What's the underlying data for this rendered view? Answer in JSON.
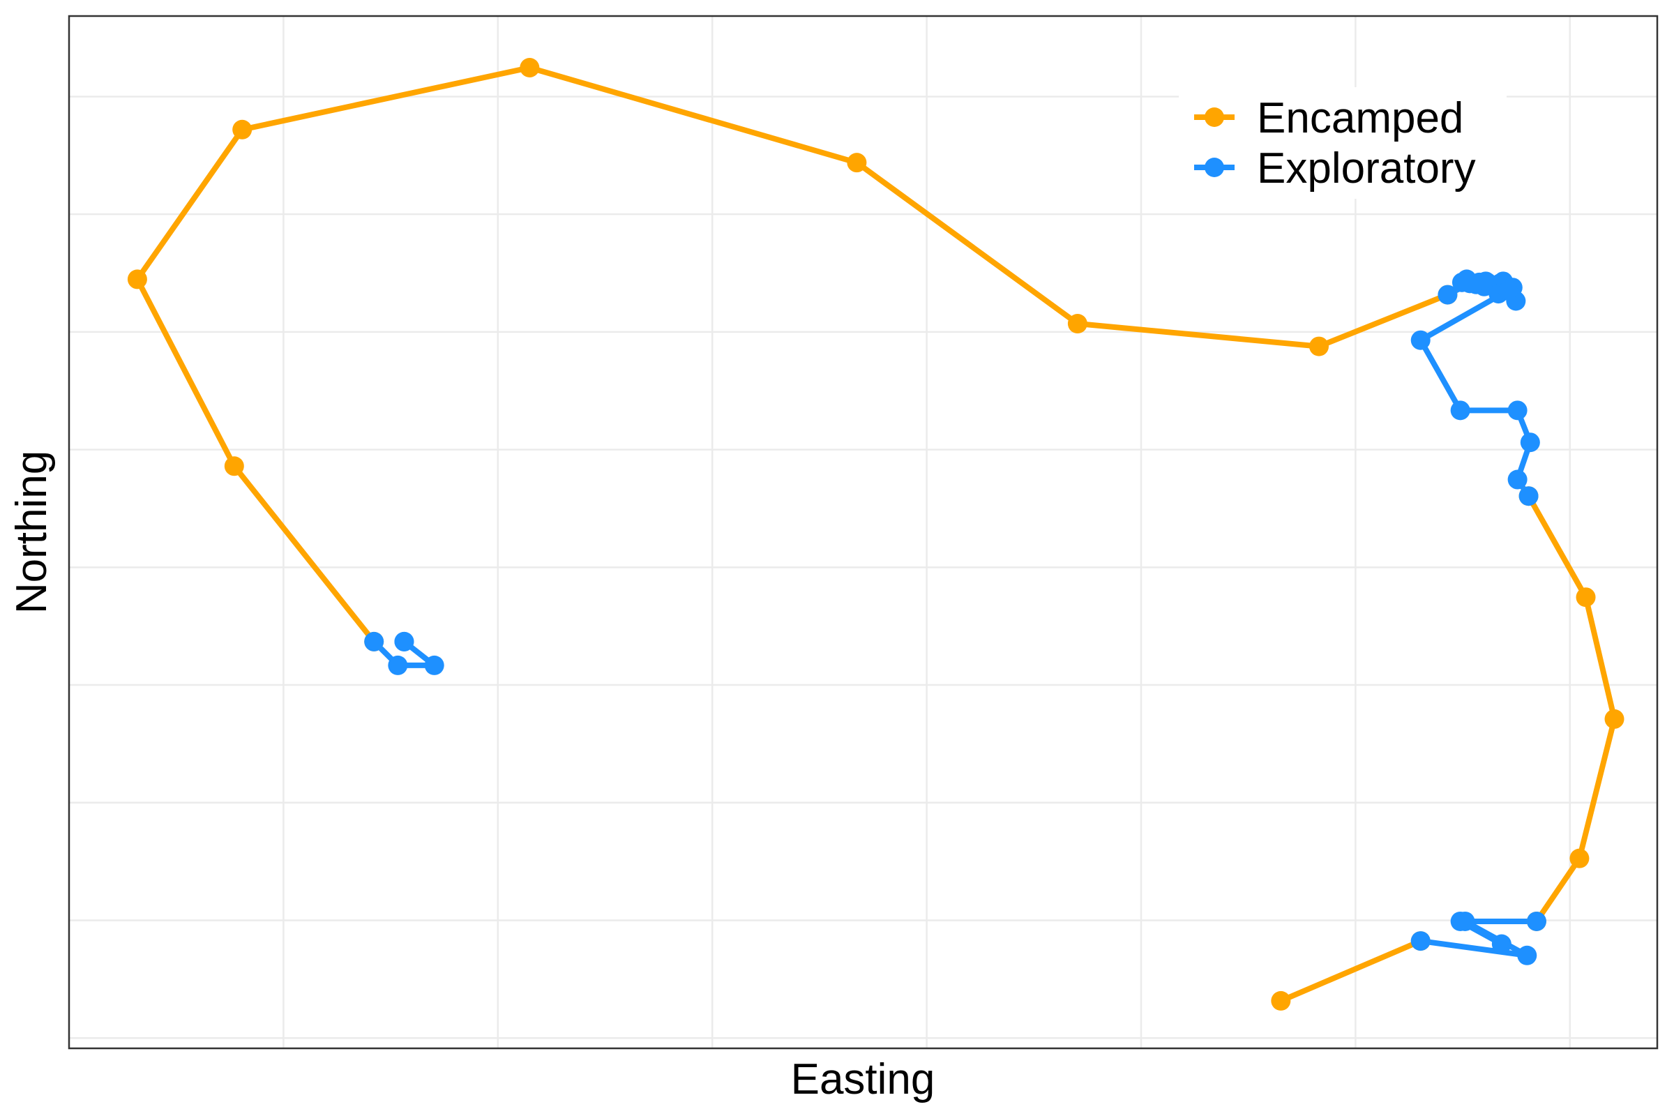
{
  "chart_data": {
    "type": "line",
    "xlabel": "Easting",
    "ylabel": "Northing",
    "xlim": [
      0,
      100
    ],
    "ylim": [
      0,
      100
    ],
    "grid": true,
    "legend_position": "top-right",
    "x_gridlines": [
      13.5,
      27,
      40.5,
      54,
      67.5,
      81,
      94.5
    ],
    "y_gridlines": [
      1.0,
      12.4,
      23.8,
      35.2,
      46.6,
      58.0,
      69.4,
      80.8,
      92.2
    ],
    "series": [
      {
        "name": "Encamped",
        "color": "#FFA500",
        "segments": [
          [
            [
              19.2,
              39.4
            ],
            [
              10.4,
              56.4
            ],
            [
              4.3,
              74.5
            ],
            [
              10.9,
              89.0
            ],
            [
              29.0,
              95.0
            ],
            [
              49.6,
              85.8
            ],
            [
              63.5,
              70.2
            ],
            [
              78.7,
              68.0
            ],
            [
              86.8,
              73.0
            ]
          ],
          [
            [
              91.9,
              53.5
            ],
            [
              95.5,
              43.7
            ],
            [
              97.3,
              31.9
            ],
            [
              95.1,
              18.4
            ],
            [
              92.4,
              12.3
            ]
          ],
          [
            [
              76.3,
              4.6
            ],
            [
              85.1,
              10.4
            ]
          ]
        ]
      },
      {
        "name": "Exploratory",
        "color": "#1E90FF",
        "segments": [
          [
            [
              19.2,
              39.4
            ],
            [
              20.7,
              37.1
            ],
            [
              23.0,
              37.1
            ],
            [
              21.1,
              39.4
            ],
            [
              21.1,
              39.4
            ]
          ],
          [
            [
              86.8,
              73.0
            ],
            [
              88.2,
              74.1
            ],
            [
              88.8,
              74.2
            ],
            [
              87.7,
              74.2
            ],
            [
              88.6,
              74.0
            ],
            [
              89.3,
              74.2
            ],
            [
              88.0,
              74.5
            ],
            [
              89.1,
              73.8
            ],
            [
              90.3,
              74.3
            ],
            [
              88.8,
              74.1
            ],
            [
              90.1,
              74.1
            ],
            [
              89.2,
              74.3
            ],
            [
              90.9,
              73.7
            ],
            [
              90.0,
              73.1
            ],
            [
              91.1,
              72.4
            ],
            [
              90.6,
              73.4
            ],
            [
              85.1,
              68.6
            ],
            [
              87.6,
              61.8
            ],
            [
              91.2,
              61.8
            ],
            [
              92.0,
              58.7
            ],
            [
              91.2,
              55.1
            ],
            [
              91.9,
              53.5
            ]
          ],
          [
            [
              92.4,
              12.3
            ],
            [
              87.6,
              12.3
            ],
            [
              90.2,
              10.1
            ],
            [
              87.9,
              12.3
            ],
            [
              91.8,
              9.0
            ],
            [
              85.1,
              10.4
            ]
          ]
        ]
      }
    ]
  }
}
